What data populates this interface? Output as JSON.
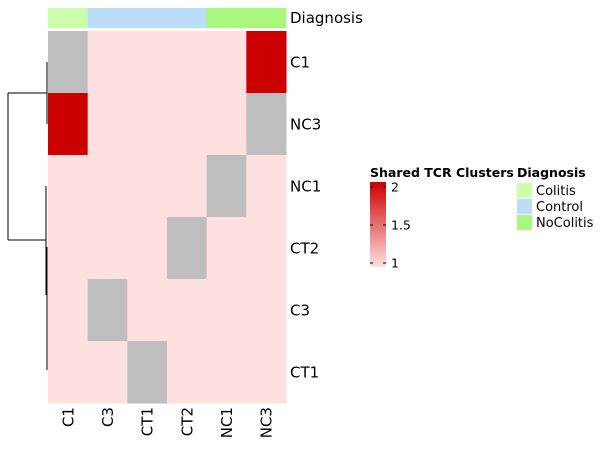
{
  "chart_data": {
    "type": "heatmap",
    "rows": [
      "C1",
      "NC3",
      "NC1",
      "CT2",
      "C3",
      "CT1"
    ],
    "columns": [
      "C1",
      "C3",
      "CT1",
      "CT2",
      "NC1",
      "NC3"
    ],
    "values": [
      [
        null,
        1,
        1,
        1,
        1,
        2
      ],
      [
        2,
        1,
        1,
        1,
        1,
        null
      ],
      [
        1,
        1,
        1,
        1,
        null,
        1
      ],
      [
        1,
        1,
        1,
        null,
        1,
        1
      ],
      [
        1,
        null,
        1,
        1,
        1,
        1
      ],
      [
        1,
        1,
        null,
        1,
        1,
        1
      ]
    ],
    "na_color": "#BEBEBE",
    "color_scale": {
      "min": 1,
      "max": 2,
      "low_color": "#FFE0E0",
      "high_color": "#CC0000"
    },
    "annotation": {
      "name": "Diagnosis",
      "column_values": [
        "Colitis",
        "Control",
        "Control",
        "Control",
        "NoColitis",
        "NoColitis"
      ]
    },
    "legend_heatmap": {
      "title": "Shared TCR Clusters",
      "ticks": [
        "2",
        "1.5",
        "1"
      ]
    },
    "legend_annotation": {
      "title": "Diagnosis",
      "entries": [
        {
          "label": "Colitis",
          "color": "#CCFFAA"
        },
        {
          "label": "Control",
          "color": "#BBDDF7"
        },
        {
          "label": "NoColitis",
          "color": "#AAF780"
        }
      ]
    }
  }
}
